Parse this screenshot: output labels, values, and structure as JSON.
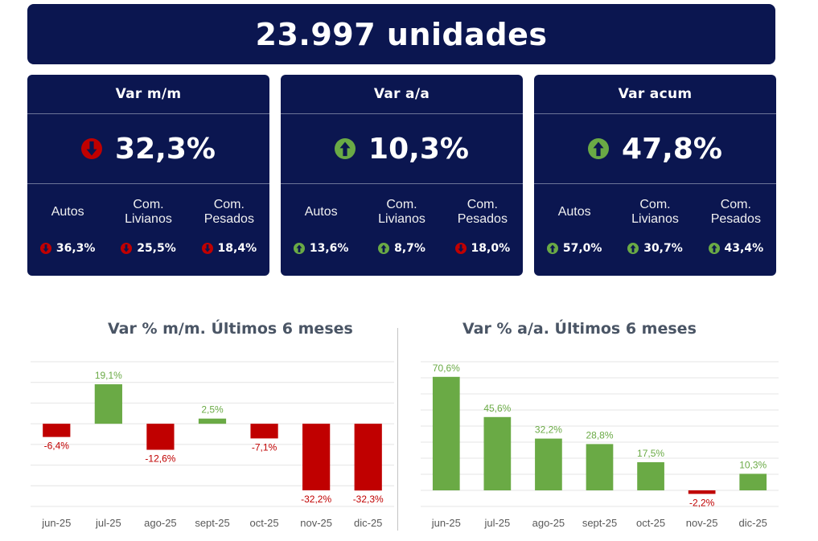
{
  "banner": {
    "text": "23.997 unidades"
  },
  "cards": [
    {
      "title": "Var m/m",
      "value": "32,3%",
      "direction": "down",
      "subs": [
        {
          "label": "Autos",
          "value": "36,3%",
          "direction": "down"
        },
        {
          "label": "Com.\nLivianos",
          "value": "25,5%",
          "direction": "down"
        },
        {
          "label": "Com.\nPesados",
          "value": "18,4%",
          "direction": "down"
        }
      ]
    },
    {
      "title": "Var a/a",
      "value": "10,3%",
      "direction": "up",
      "subs": [
        {
          "label": "Autos",
          "value": "13,6%",
          "direction": "up"
        },
        {
          "label": "Com.\nLivianos",
          "value": "8,7%",
          "direction": "up"
        },
        {
          "label": "Com.\nPesados",
          "value": "18,0%",
          "direction": "down"
        }
      ]
    },
    {
      "title": "Var acum",
      "value": "47,8%",
      "direction": "up",
      "subs": [
        {
          "label": "Autos",
          "value": "57,0%",
          "direction": "up"
        },
        {
          "label": "Com.\nLivianos",
          "value": "30,7%",
          "direction": "up"
        },
        {
          "label": "Com.\nPesados",
          "value": "43,4%",
          "direction": "up"
        }
      ]
    }
  ],
  "colors": {
    "navy": "#0b1650",
    "up": "#6aaa45",
    "down": "#c00000",
    "gridline": "#e4e4e4",
    "axis_text": "#595959",
    "title_text": "#4a5565"
  },
  "icons": {
    "up": "arrow-up-circle-icon",
    "down": "arrow-down-circle-icon"
  },
  "chart_data": [
    {
      "type": "bar",
      "title": "Var % m/m. Últimos 6 meses",
      "categories": [
        "jun-25",
        "jul-25",
        "ago-25",
        "sept-25",
        "oct-25",
        "nov-25",
        "dic-25"
      ],
      "values": [
        -6.4,
        19.1,
        -12.6,
        2.5,
        -7.1,
        -32.2,
        -32.3
      ],
      "labels": [
        "-6,4%",
        "19,1%",
        "-12,6%",
        "2,5%",
        "-7,1%",
        "-32,2%",
        "-32,3%"
      ],
      "ylim": [
        -40,
        30
      ],
      "grid": true,
      "legend": "none"
    },
    {
      "type": "bar",
      "title": "Var % a/a. Últimos 6 meses",
      "categories": [
        "jun-25",
        "jul-25",
        "ago-25",
        "sept-25",
        "oct-25",
        "nov-25",
        "dic-25"
      ],
      "values": [
        70.6,
        45.6,
        32.2,
        28.8,
        17.5,
        -2.2,
        10.3
      ],
      "labels": [
        "70,6%",
        "45,6%",
        "32,2%",
        "28,8%",
        "17,5%",
        "-2,2%",
        "10,3%"
      ],
      "ylim": [
        -10,
        80
      ],
      "grid": true,
      "legend": "none"
    }
  ]
}
